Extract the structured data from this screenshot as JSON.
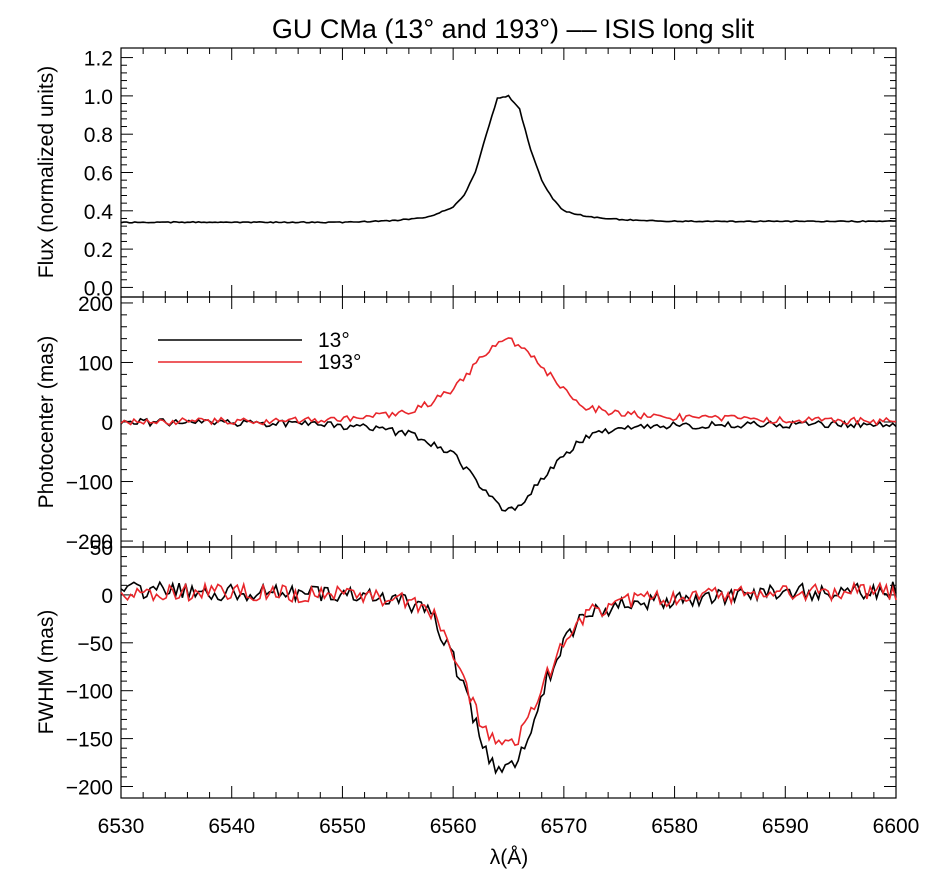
{
  "title": "GU CMa (13° and 193°) –– ISIS long slit",
  "xlabel": "λ(Å)",
  "x_ticks": [
    "6530",
    "6540",
    "6550",
    "6560",
    "6570",
    "6580",
    "6590",
    "6600"
  ],
  "panels": [
    {
      "ylabel": "Flux (normalized units)",
      "y_ticks": [
        "0.0",
        "0.2",
        "0.4",
        "0.6",
        "0.8",
        "1.0",
        "1.2"
      ]
    },
    {
      "ylabel": "Photocenter (mas)",
      "y_ticks": [
        "−200",
        "−100",
        "0",
        "100",
        "200"
      ]
    },
    {
      "ylabel": "FWHM (mas)",
      "y_ticks": [
        "−200",
        "−150",
        "−100",
        "−50",
        "0",
        "50"
      ]
    }
  ],
  "legend": [
    {
      "label": "13°",
      "color": "#000000"
    },
    {
      "label": "193°",
      "color": "#e8262b"
    }
  ],
  "chart_data": [
    {
      "type": "line",
      "xlim": [
        6530,
        6600
      ],
      "ylim": [
        -0.05,
        1.25
      ],
      "ylabel": "Flux (normalized units)",
      "series": [
        {
          "color": "#000000",
          "x": [
            6530,
            6540,
            6550,
            6555,
            6558,
            6560,
            6561,
            6562,
            6563,
            6564,
            6565,
            6566,
            6567,
            6568,
            6569,
            6570,
            6572,
            6575,
            6580,
            6590,
            6600
          ],
          "values": [
            0.34,
            0.34,
            0.34,
            0.35,
            0.37,
            0.42,
            0.48,
            0.6,
            0.8,
            0.99,
            1.0,
            0.93,
            0.72,
            0.56,
            0.46,
            0.4,
            0.37,
            0.355,
            0.345,
            0.345,
            0.345
          ]
        }
      ]
    },
    {
      "type": "line",
      "xlim": [
        6530,
        6600
      ],
      "ylim": [
        -210,
        210
      ],
      "ylabel": "Photocenter (mas)",
      "series": [
        {
          "name": "13°",
          "color": "#000000",
          "x": [
            6530,
            6545,
            6552,
            6556,
            6558,
            6560,
            6562,
            6563,
            6564,
            6565,
            6566,
            6567,
            6568,
            6570,
            6572,
            6575,
            6580,
            6590,
            6600
          ],
          "values": [
            0,
            -3,
            -8,
            -20,
            -35,
            -55,
            -95,
            -120,
            -140,
            -148,
            -140,
            -120,
            -95,
            -55,
            -25,
            -12,
            -6,
            -4,
            -3
          ]
        },
        {
          "name": "193°",
          "color": "#e8262b",
          "x": [
            6530,
            6545,
            6552,
            6556,
            6558,
            6560,
            6562,
            6563,
            6564,
            6565,
            6566,
            6567,
            6568,
            6570,
            6572,
            6575,
            6580,
            6590,
            6600
          ],
          "values": [
            0,
            2,
            7,
            18,
            33,
            55,
            95,
            118,
            130,
            138,
            130,
            115,
            92,
            55,
            25,
            14,
            8,
            3,
            1
          ]
        }
      ]
    },
    {
      "type": "line",
      "xlim": [
        6530,
        6600
      ],
      "ylim": [
        -212,
        50
      ],
      "ylabel": "FWHM (mas)",
      "series": [
        {
          "name": "13°",
          "color": "#000000",
          "x": [
            6530,
            6540,
            6550,
            6555,
            6558,
            6560,
            6562,
            6563,
            6564,
            6565,
            6566,
            6567,
            6568,
            6570,
            6572,
            6575,
            6580,
            6590,
            6600
          ],
          "values": [
            5,
            3,
            0,
            -5,
            -20,
            -65,
            -135,
            -165,
            -180,
            -182,
            -165,
            -140,
            -100,
            -50,
            -20,
            -10,
            -5,
            3,
            5
          ]
        },
        {
          "name": "193°",
          "color": "#e8262b",
          "x": [
            6530,
            6540,
            6550,
            6555,
            6558,
            6560,
            6562,
            6563,
            6564,
            6565,
            6566,
            6567,
            6568,
            6570,
            6572,
            6575,
            6580,
            6590,
            6600
          ],
          "values": [
            2,
            3,
            0,
            -5,
            -18,
            -58,
            -120,
            -145,
            -155,
            -158,
            -148,
            -128,
            -95,
            -48,
            -18,
            -8,
            -3,
            3,
            3
          ]
        }
      ]
    }
  ]
}
